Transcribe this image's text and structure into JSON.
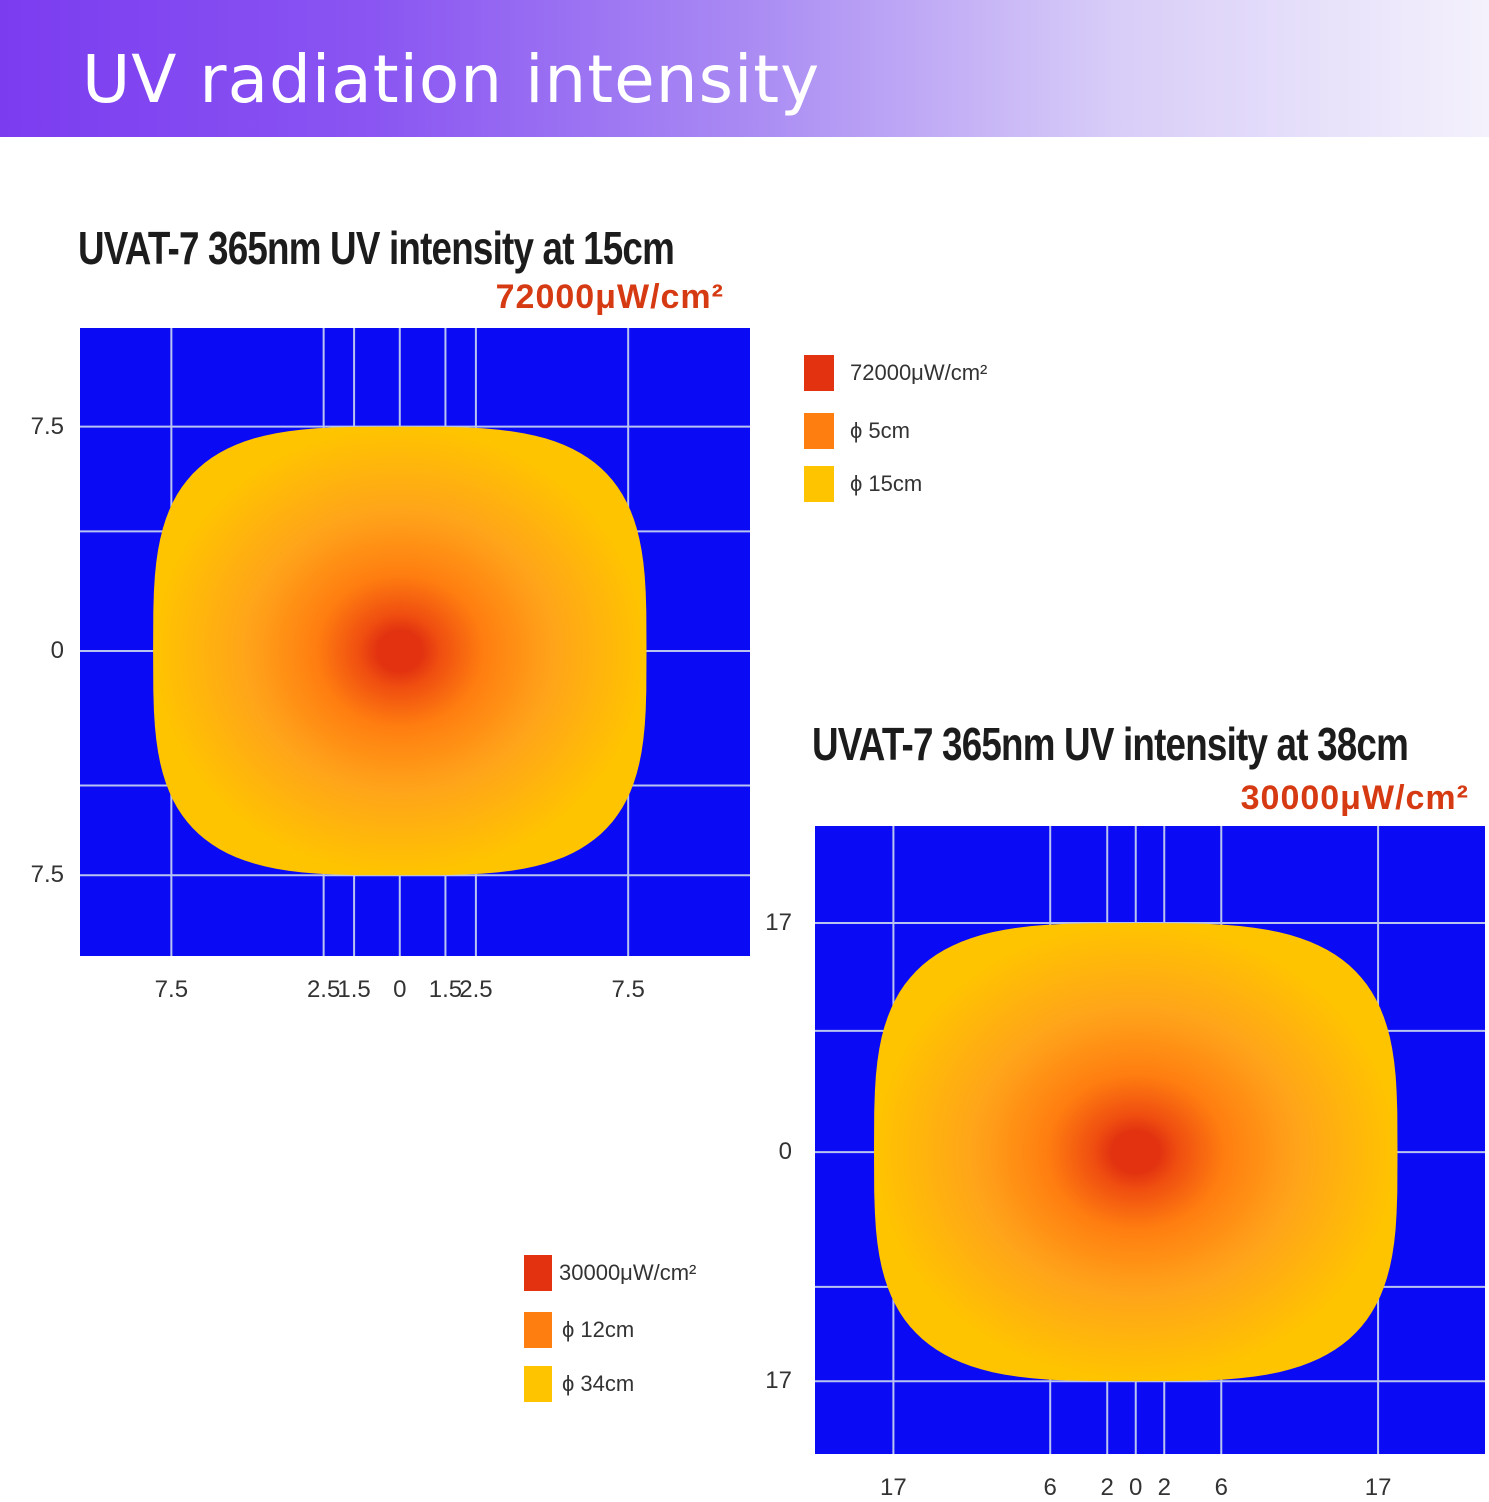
{
  "header": {
    "title": "UV radiation intensity"
  },
  "colors": {
    "background": "#0a0af5",
    "grid": "#b9c3f0",
    "outer_zone": "#ffc400",
    "mid_zone": "#ff7e10",
    "center": "#e23210",
    "accent_text": "#d63a12"
  },
  "chart_data": [
    {
      "type": "heatmap",
      "title": "UVAT-7 365nm UV intensity at 15cm",
      "subtitle": "72000μW/cm²",
      "x_ticks": [
        {
          "label": "7.5",
          "value": -7.5
        },
        {
          "label": "2.5",
          "value": -2.5
        },
        {
          "label": "1.5",
          "value": -1.5
        },
        {
          "label": "0",
          "value": 0
        },
        {
          "label": "1.5",
          "value": 1.5
        },
        {
          "label": "2.5",
          "value": 2.5
        },
        {
          "label": "7.5",
          "value": 7.5
        }
      ],
      "y_ticks": [
        {
          "label": "7.5",
          "value": 7.5
        },
        {
          "label": "0",
          "value": 0
        },
        {
          "label": "7.5",
          "value": -7.5
        }
      ],
      "xlim": [
        -10.5,
        11.5
      ],
      "ylim": [
        -10.2,
        10.8
      ],
      "grid_x": [
        -7.5,
        -2.5,
        -1.5,
        0,
        1.5,
        2.5,
        7.5
      ],
      "grid_y": [
        7.5,
        4,
        0,
        -4.5,
        -7.5
      ],
      "peak_intensity": "72000μW/cm²",
      "zones": [
        {
          "label": "72000μW/cm²",
          "color": "#e23210",
          "diameter_cm": null
        },
        {
          "label": "ϕ 5cm",
          "color": "#ff7e10",
          "diameter_cm": 5
        },
        {
          "label": "ϕ 15cm",
          "color": "#ffc400",
          "diameter_cm": 15
        }
      ],
      "grid": true,
      "legend_position": "right"
    },
    {
      "type": "heatmap",
      "title": "UVAT-7 365nm UV intensity at 38cm",
      "subtitle": "30000μW/cm²",
      "x_ticks": [
        {
          "label": "17",
          "value": -17
        },
        {
          "label": "6",
          "value": -6
        },
        {
          "label": "2",
          "value": -2
        },
        {
          "label": "0",
          "value": 0
        },
        {
          "label": "2",
          "value": 2
        },
        {
          "label": "6",
          "value": 6
        },
        {
          "label": "17",
          "value": 17
        }
      ],
      "y_ticks": [
        {
          "label": "17",
          "value": 17
        },
        {
          "label": "0",
          "value": 0
        },
        {
          "label": "17",
          "value": -17
        }
      ],
      "xlim": [
        -22.5,
        24.5
      ],
      "ylim": [
        -22.4,
        24.2
      ],
      "grid_x": [
        -17,
        -6,
        -2,
        0,
        2,
        6,
        17
      ],
      "grid_y": [
        17,
        9,
        0,
        -10,
        -17
      ],
      "peak_intensity": "30000μW/cm²",
      "zones": [
        {
          "label": "30000μW/cm²",
          "color": "#e23210",
          "diameter_cm": null
        },
        {
          "label": "ϕ 12cm",
          "color": "#ff7e10",
          "diameter_cm": 12
        },
        {
          "label": "ϕ 34cm",
          "color": "#ffc400",
          "diameter_cm": 34
        }
      ],
      "grid": true,
      "legend_position": "bottom-left"
    }
  ]
}
